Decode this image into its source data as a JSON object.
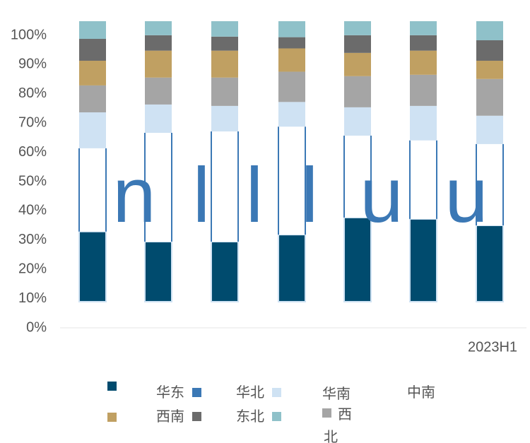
{
  "chart_data": {
    "type": "stacked_bar",
    "categories": [
      null,
      null,
      null,
      null,
      null,
      null,
      "2023H1"
    ],
    "series": [
      {
        "name": "华东",
        "color": "#004b6e",
        "values": [
          25.0,
          21.4,
          21.4,
          23.9,
          30.0,
          29.5,
          27.2
        ]
      },
      {
        "name": "华北",
        "color": "#3b78b5",
        "values": [
          29.7,
          38.8,
          39.3,
          38.5,
          29.2,
          28.0,
          29.0
        ]
      },
      {
        "name": "华南",
        "color": "#cfe2f3",
        "values": [
          12.8,
          10.1,
          9.1,
          8.8,
          10.1,
          12.3,
          10.1
        ]
      },
      {
        "name": "中南",
        "color": "#a5a5a5",
        "values": [
          9.6,
          9.6,
          10.1,
          10.8,
          11.1,
          11.1,
          13.1
        ]
      },
      {
        "name": "西南",
        "color": "#c0a062",
        "values": [
          8.8,
          9.6,
          9.6,
          8.3,
          8.3,
          8.6,
          6.5
        ]
      },
      {
        "name": "东北",
        "color": "#6b6b6b",
        "values": [
          7.8,
          5.5,
          5.0,
          4.0,
          6.3,
          5.5,
          7.3
        ]
      },
      {
        "name": "西北",
        "color": "#8fc1c9",
        "values": [
          6.3,
          5.0,
          5.5,
          5.7,
          5.0,
          5.0,
          6.8
        ]
      }
    ],
    "annotations": [
      "n",
      "l",
      "l",
      "l",
      "u",
      "u"
    ],
    "ylim": [
      0,
      100
    ],
    "yticks": [
      {
        "value": 0,
        "label": "0%"
      },
      {
        "value": 10,
        "label": "10%"
      },
      {
        "value": 20,
        "label": "20%"
      },
      {
        "value": 30,
        "label": "30%"
      },
      {
        "value": 40,
        "label": "40%"
      },
      {
        "value": 50,
        "label": "50%"
      },
      {
        "value": 60,
        "label": "60%"
      },
      {
        "value": 70,
        "label": "70%"
      },
      {
        "value": 80,
        "label": "80%"
      },
      {
        "value": 90,
        "label": "90%"
      },
      {
        "value": 100,
        "label": "100%"
      }
    ],
    "grid": false
  }
}
